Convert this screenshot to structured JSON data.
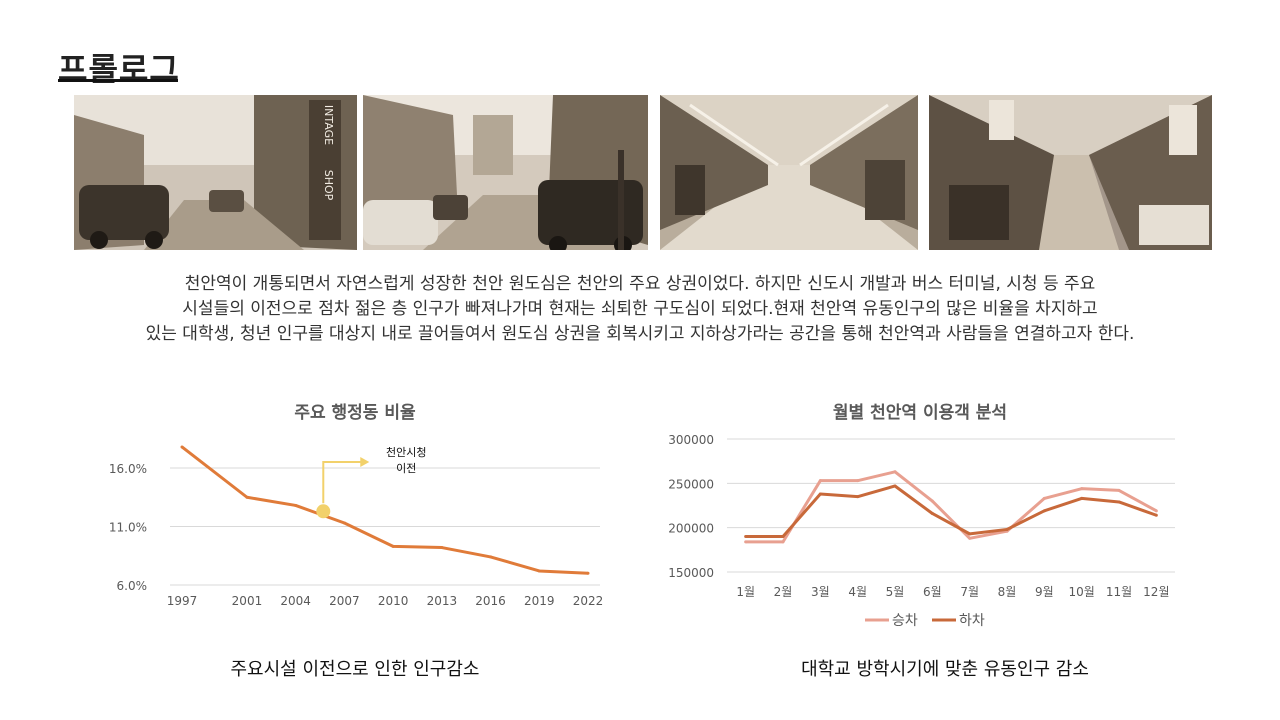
{
  "slide": {
    "title": "프롤로그",
    "intro_lines": [
      "천안역이 개통되면서 자연스럽게 성장한 천안 원도심은 천안의 주요 상권이었다. 하지만 신도시 개발과 버스 터미널, 시청 등 주요",
      "시설들의 이전으로 점차  젊은 층 인구가 빠져나가며 현재는 쇠퇴한 구도심이 되었다.현재 천안역 유동인구의 많은 비율을 차지하고",
      "있는 대학생, 청년 인구를 대상지 내로 끌어들여서 원도심 상권을 회복시키고 지하상가라는 공간을 통해 천안역과 사람들을 연결하고자 한다."
    ],
    "photos": [
      {
        "icon": "street-photo-vintage-shop",
        "tone": "#8a7a68"
      },
      {
        "icon": "street-photo-parked-cars",
        "tone": "#7d6f60"
      },
      {
        "icon": "underground-mall-photo",
        "tone": "#9a8b78"
      },
      {
        "icon": "arcade-market-photo",
        "tone": "#6f6253"
      }
    ],
    "colors": {
      "line_main": "#e07b39",
      "annotation": "#f2d16b",
      "boarding": "#e8a090",
      "alighting": "#c8693a",
      "grid": "#d9d9d9",
      "tick": "#595959"
    }
  },
  "chart_data": [
    {
      "type": "line",
      "title": "주요 행정동 비율",
      "categories": [
        "1997",
        "2001",
        "2004",
        "2007",
        "2010",
        "2013",
        "2016",
        "2019",
        "2022"
      ],
      "x": [
        1997,
        2001,
        2004,
        2007,
        2010,
        2013,
        2016,
        2019,
        2022
      ],
      "series": [
        {
          "values": [
            17.8,
            13.5,
            12.8,
            11.3,
            9.3,
            9.2,
            8.4,
            7.2,
            7.0
          ]
        }
      ],
      "ylim": [
        6.0,
        16.0
      ],
      "yticks": [
        "16.0%",
        "11.0%",
        "6.0%"
      ],
      "ytick_values": [
        16.0,
        11.0,
        6.0
      ],
      "grid": true,
      "annotation": {
        "text_line1": "천안시청",
        "text_line2": "이전",
        "x": 2005.7,
        "y": 12.3
      },
      "caption": "주요시설 이전으로 인한 인구감소"
    },
    {
      "type": "line",
      "title": "월별 천안역 이용객 분석",
      "categories": [
        "1월",
        "2월",
        "3월",
        "4월",
        "5월",
        "6월",
        "7월",
        "8월",
        "9월",
        "10월",
        "11월",
        "12월"
      ],
      "series": [
        {
          "name": "승차",
          "values": [
            184000,
            184000,
            253000,
            253000,
            263000,
            230000,
            188000,
            196000,
            233000,
            244000,
            242000,
            219000
          ]
        },
        {
          "name": "하차",
          "values": [
            190000,
            190000,
            238000,
            235000,
            247000,
            216000,
            193000,
            198000,
            219000,
            233000,
            229000,
            214000
          ]
        }
      ],
      "ylim": [
        150000,
        300000
      ],
      "yticks": [
        "300000",
        "250000",
        "200000",
        "150000"
      ],
      "ytick_values": [
        300000,
        250000,
        200000,
        150000
      ],
      "grid": true,
      "legend": "bottom",
      "caption": "대학교 방학시기에 맞춘 유동인구 감소"
    }
  ]
}
